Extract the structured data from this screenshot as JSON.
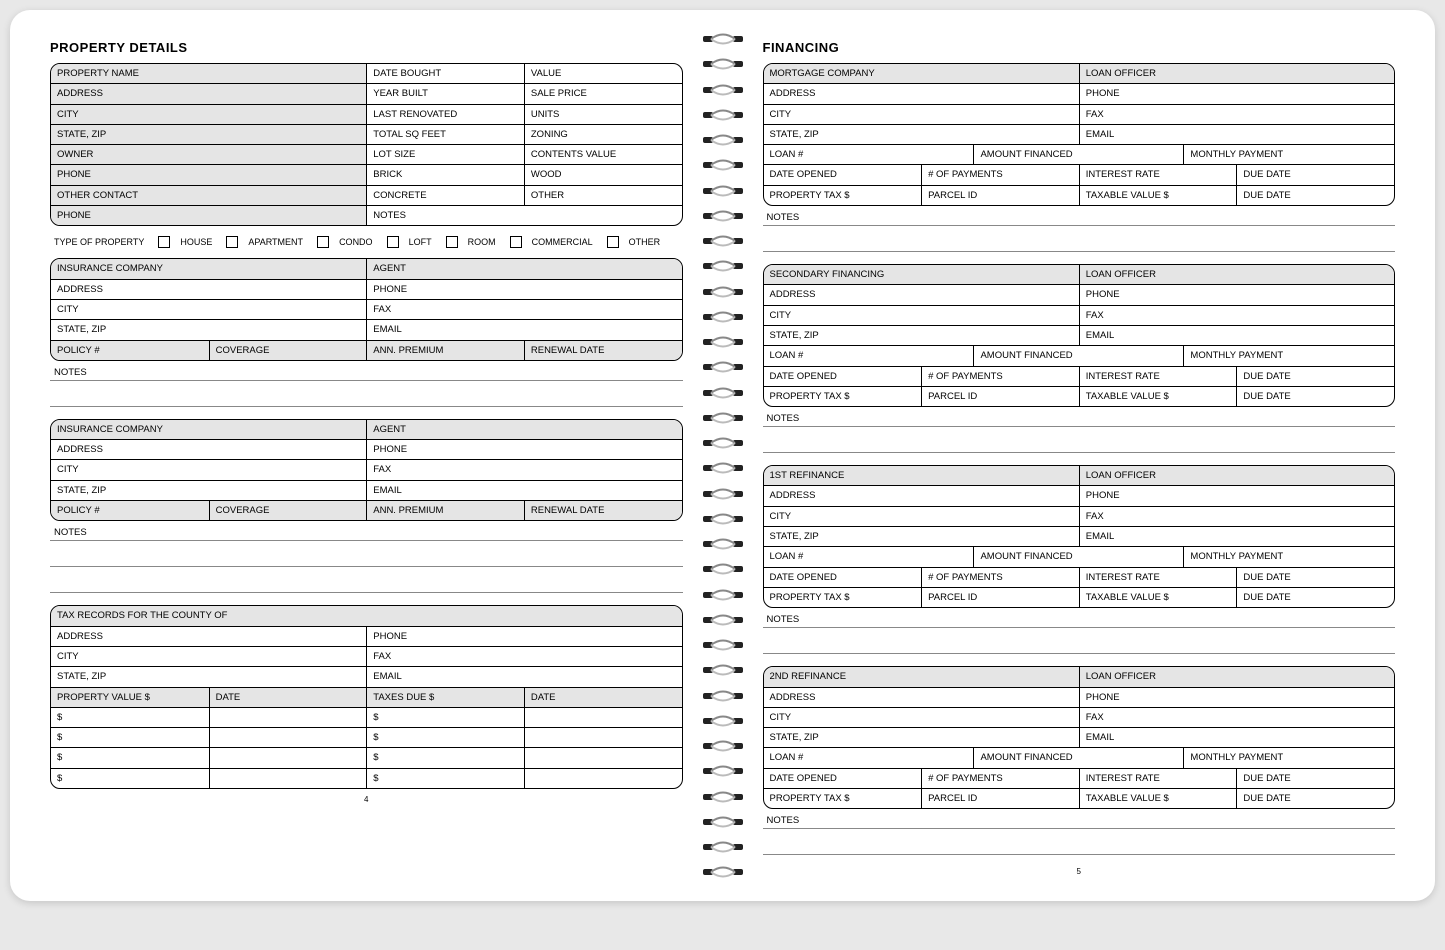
{
  "left": {
    "title": "PROPERTY  DETAILS",
    "pagenum": "4",
    "details": {
      "r1": [
        "PROPERTY NAME",
        "DATE BOUGHT",
        "VALUE"
      ],
      "r2": [
        "ADDRESS",
        "YEAR BUILT",
        "SALE PRICE"
      ],
      "r3": [
        "CITY",
        "LAST RENOVATED",
        "UNITS"
      ],
      "r4": [
        "STATE, ZIP",
        "TOTAL SQ FEET",
        "ZONING"
      ],
      "r5": [
        "OWNER",
        "LOT SIZE",
        "CONTENTS VALUE"
      ],
      "r6": [
        "PHONE",
        "BRICK",
        "WOOD"
      ],
      "r7": [
        "OTHER CONTACT",
        "CONCRETE",
        "OTHER"
      ],
      "r8": [
        "PHONE",
        "NOTES"
      ]
    },
    "propType": {
      "label": "TYPE OF PROPERTY",
      "options": [
        "HOUSE",
        "APARTMENT",
        "CONDO",
        "LOFT",
        "ROOM",
        "COMMERCIAL",
        "OTHER"
      ]
    },
    "ins": {
      "r1": [
        "INSURANCE COMPANY",
        "AGENT"
      ],
      "r2": [
        "ADDRESS",
        "PHONE"
      ],
      "r3": [
        "CITY",
        "FAX"
      ],
      "r4": [
        "STATE, ZIP",
        "EMAIL"
      ],
      "r5": [
        "POLICY #",
        "COVERAGE",
        "ANN. PREMIUM",
        "RENEWAL DATE"
      ]
    },
    "notes": "NOTES",
    "tax": {
      "r1": "TAX RECORDS FOR THE COUNTY OF",
      "r2": [
        "ADDRESS",
        "PHONE"
      ],
      "r3": [
        "CITY",
        "FAX"
      ],
      "r4": [
        "STATE, ZIP",
        "EMAIL"
      ],
      "r5": [
        "PROPERTY VALUE $",
        "DATE",
        "TAXES DUE $",
        "DATE"
      ],
      "dollar": "$"
    }
  },
  "right": {
    "title": "FINANCING",
    "pagenum": "5",
    "notes": "NOTES",
    "blocks": [
      {
        "name": "MORTGAGE COMPANY"
      },
      {
        "name": "SECONDARY FINANCING"
      },
      {
        "name": "1ST REFINANCE"
      },
      {
        "name": "2ND REFINANCE"
      }
    ],
    "labels": {
      "loanOfficer": "LOAN OFFICER",
      "address": "ADDRESS",
      "phone": "PHONE",
      "city": "CITY",
      "fax": "FAX",
      "stateZip": "STATE, ZIP",
      "email": "EMAIL",
      "loanNum": "LOAN #",
      "amountFinanced": "AMOUNT FINANCED",
      "monthlyPayment": "MONTHLY PAYMENT",
      "dateOpened": "DATE OPENED",
      "numPayments": "# OF PAYMENTS",
      "interestRate": "INTEREST RATE",
      "dueDate": "DUE DATE",
      "propTax": "PROPERTY TAX $",
      "parcelId": "PARCEL ID",
      "taxableValue": "TAXABLE VALUE $"
    }
  }
}
